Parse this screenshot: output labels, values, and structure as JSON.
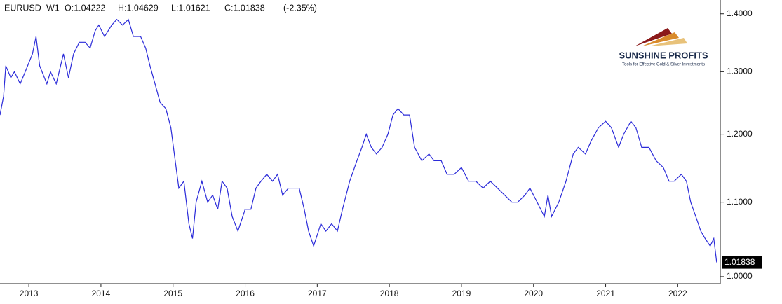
{
  "chart_data": {
    "type": "line",
    "header": {
      "symbol": "EURUSD",
      "timeframe": "W1",
      "open": "O:1.04222",
      "high": "H:1.04629",
      "low": "L:1.01621",
      "close": "C:1.01838",
      "change": "(-2.35%)"
    },
    "logo": {
      "name": "SUNSHINE PROFITS",
      "tagline": "Tools for Effective Gold & Silver Investments"
    },
    "log_scale": true,
    "grid": false,
    "xlim": [
      2012.6,
      2022.59
    ],
    "xticks": [
      2013,
      2014,
      2015,
      2016,
      2017,
      2018,
      2019,
      2020,
      2021,
      2022
    ],
    "ylim": [
      0.991,
      1.425
    ],
    "yticks": [
      {
        "value": 1.0,
        "label": "1.0000"
      },
      {
        "value": 1.1,
        "label": "1.1000"
      },
      {
        "value": 1.2,
        "label": "1.2000"
      },
      {
        "value": 1.3,
        "label": "1.3000"
      },
      {
        "value": 1.4,
        "label": "1.4000"
      }
    ],
    "last_price": {
      "value": 1.01838,
      "label": "1.01838"
    },
    "x": [
      2012.6,
      2012.65,
      2012.68,
      2012.75,
      2012.8,
      2012.88,
      2012.95,
      2013.05,
      2013.1,
      2013.15,
      2013.25,
      2013.3,
      2013.38,
      2013.48,
      2013.55,
      2013.62,
      2013.7,
      2013.78,
      2013.85,
      2013.92,
      2013.97,
      2014.05,
      2014.15,
      2014.22,
      2014.3,
      2014.38,
      2014.45,
      2014.55,
      2014.62,
      2014.68,
      2014.75,
      2014.82,
      2014.9,
      2014.97,
      2015.03,
      2015.08,
      2015.15,
      2015.22,
      2015.27,
      2015.32,
      2015.4,
      2015.48,
      2015.55,
      2015.62,
      2015.68,
      2015.75,
      2015.82,
      2015.9,
      2016.0,
      2016.08,
      2016.15,
      2016.22,
      2016.3,
      2016.38,
      2016.45,
      2016.52,
      2016.6,
      2016.68,
      2016.75,
      2016.82,
      2016.88,
      2016.95,
      2017.05,
      2017.12,
      2017.2,
      2017.28,
      2017.35,
      2017.45,
      2017.55,
      2017.62,
      2017.68,
      2017.75,
      2017.82,
      2017.9,
      2017.98,
      2018.05,
      2018.12,
      2018.2,
      2018.28,
      2018.35,
      2018.45,
      2018.55,
      2018.62,
      2018.72,
      2018.8,
      2018.9,
      2019.0,
      2019.1,
      2019.2,
      2019.3,
      2019.4,
      2019.5,
      2019.6,
      2019.7,
      2019.78,
      2019.88,
      2019.95,
      2020.05,
      2020.15,
      2020.2,
      2020.25,
      2020.35,
      2020.45,
      2020.55,
      2020.62,
      2020.72,
      2020.8,
      2020.9,
      2021.0,
      2021.08,
      2021.18,
      2021.25,
      2021.35,
      2021.42,
      2021.5,
      2021.6,
      2021.7,
      2021.8,
      2021.88,
      2021.95,
      2022.05,
      2022.12,
      2022.18,
      2022.25,
      2022.32,
      2022.38,
      2022.45,
      2022.5,
      2022.54
    ],
    "series": [
      {
        "name": "EURUSD",
        "color": "#2b2bd9",
        "values": [
          1.23,
          1.26,
          1.31,
          1.29,
          1.3,
          1.28,
          1.3,
          1.33,
          1.36,
          1.31,
          1.28,
          1.3,
          1.28,
          1.33,
          1.29,
          1.33,
          1.35,
          1.35,
          1.34,
          1.37,
          1.38,
          1.36,
          1.38,
          1.39,
          1.38,
          1.39,
          1.36,
          1.36,
          1.34,
          1.31,
          1.28,
          1.25,
          1.24,
          1.21,
          1.16,
          1.12,
          1.13,
          1.07,
          1.05,
          1.1,
          1.13,
          1.1,
          1.11,
          1.09,
          1.13,
          1.12,
          1.08,
          1.06,
          1.09,
          1.09,
          1.12,
          1.13,
          1.14,
          1.13,
          1.14,
          1.11,
          1.12,
          1.12,
          1.12,
          1.09,
          1.06,
          1.04,
          1.07,
          1.06,
          1.07,
          1.06,
          1.09,
          1.13,
          1.16,
          1.18,
          1.2,
          1.18,
          1.17,
          1.18,
          1.2,
          1.23,
          1.24,
          1.23,
          1.23,
          1.18,
          1.16,
          1.17,
          1.16,
          1.16,
          1.14,
          1.14,
          1.15,
          1.13,
          1.13,
          1.12,
          1.13,
          1.12,
          1.11,
          1.1,
          1.1,
          1.11,
          1.12,
          1.1,
          1.08,
          1.11,
          1.08,
          1.1,
          1.13,
          1.17,
          1.18,
          1.17,
          1.19,
          1.21,
          1.22,
          1.21,
          1.18,
          1.2,
          1.22,
          1.21,
          1.18,
          1.18,
          1.16,
          1.15,
          1.13,
          1.13,
          1.14,
          1.13,
          1.1,
          1.08,
          1.06,
          1.05,
          1.04,
          1.05,
          1.01838
        ]
      }
    ]
  }
}
